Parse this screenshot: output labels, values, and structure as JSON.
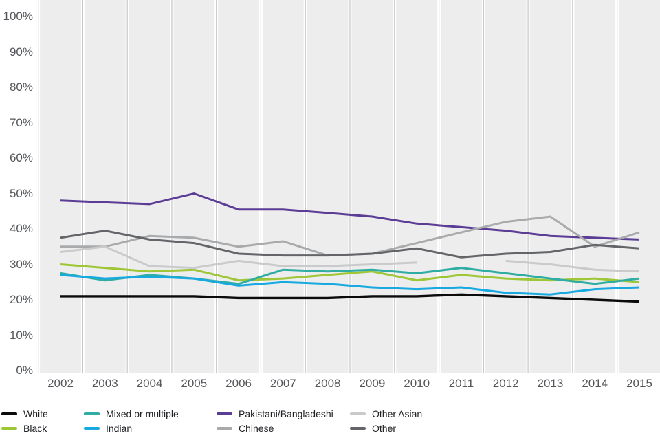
{
  "chart_data": {
    "type": "line",
    "title": "",
    "xlabel": "",
    "ylabel": "",
    "x": [
      2002,
      2003,
      2004,
      2005,
      2006,
      2007,
      2008,
      2009,
      2010,
      2011,
      2012,
      2013,
      2014,
      2015
    ],
    "ylim": [
      0,
      100
    ],
    "yticks": [
      0,
      10,
      20,
      30,
      40,
      50,
      60,
      70,
      80,
      90,
      100
    ],
    "ytick_suffix": "%",
    "grid": "vertical year-band separators only, no horizontal gridlines",
    "plot_background": "#ededed",
    "separator_gap_color": "#ffffff",
    "separator_line_color": "#c4c5c7",
    "axis_text_color": "#54565a",
    "legend_position": "bottom",
    "series": [
      {
        "name": "White",
        "color": "#0b0b0b",
        "values": [
          21,
          21,
          21,
          21,
          20.5,
          20.5,
          20.5,
          21,
          21,
          21.5,
          21,
          20.5,
          20,
          19.5
        ]
      },
      {
        "name": "Black",
        "color": "#9ec636",
        "values": [
          30,
          29,
          28,
          28.5,
          25.5,
          26,
          27,
          28,
          25.5,
          27,
          26,
          25.5,
          26,
          25
        ]
      },
      {
        "name": "Mixed or multiple",
        "color": "#30ada3",
        "values": [
          27.5,
          25.5,
          27,
          26,
          24.5,
          28.5,
          28,
          28.5,
          27.5,
          29,
          27.5,
          26,
          24.5,
          26
        ]
      },
      {
        "name": "Indian",
        "color": "#19a9e1",
        "values": [
          27,
          26,
          26.5,
          26,
          24,
          25,
          24.5,
          23.5,
          23,
          23.5,
          22,
          21.5,
          23,
          23.5
        ]
      },
      {
        "name": "Pakistani/Bangladeshi",
        "color": "#5b3d96",
        "values": [
          48,
          47.5,
          47,
          50,
          45.5,
          45.5,
          44.5,
          43.5,
          41.5,
          40.5,
          39.5,
          38,
          37.5,
          37
        ]
      },
      {
        "name": "Chinese",
        "color": "#a8aaac",
        "values": [
          35,
          35,
          38,
          37.5,
          35,
          36.5,
          32.5,
          33,
          36,
          39,
          42,
          43.5,
          35,
          39
        ]
      },
      {
        "name": "Other Asian",
        "color": "#c9cacc",
        "values": [
          33.5,
          35,
          29.5,
          29,
          31,
          29.5,
          29.5,
          30,
          30.5,
          null,
          31,
          30,
          28.5,
          28
        ]
      },
      {
        "name": "Other",
        "color": "#636568",
        "values": [
          37.5,
          39.5,
          37,
          36,
          33,
          32.5,
          32.5,
          33,
          34.5,
          32,
          33,
          33.5,
          35.5,
          34.5
        ]
      }
    ]
  },
  "axes": {
    "y_labels": [
      "0%",
      "10%",
      "20%",
      "30%",
      "40%",
      "50%",
      "60%",
      "70%",
      "80%",
      "90%",
      "100%"
    ],
    "x_labels": [
      "2002",
      "2003",
      "2004",
      "2005",
      "2006",
      "2007",
      "2008",
      "2009",
      "2010",
      "2011",
      "2012",
      "2013",
      "2014",
      "2015"
    ]
  },
  "legend": {
    "items": [
      {
        "label": "White",
        "series": 0,
        "col": 0,
        "row": 0
      },
      {
        "label": "Black",
        "series": 1,
        "col": 0,
        "row": 1
      },
      {
        "label": "Mixed or multiple",
        "series": 2,
        "col": 1,
        "row": 0
      },
      {
        "label": "Indian",
        "series": 3,
        "col": 1,
        "row": 1
      },
      {
        "label": "Pakistani/Bangladeshi",
        "series": 4,
        "col": 2,
        "row": 0
      },
      {
        "label": "Chinese",
        "series": 5,
        "col": 2,
        "row": 1
      },
      {
        "label": "Other Asian",
        "series": 6,
        "col": 3,
        "row": 0
      },
      {
        "label": "Other",
        "series": 7,
        "col": 3,
        "row": 1
      }
    ]
  }
}
